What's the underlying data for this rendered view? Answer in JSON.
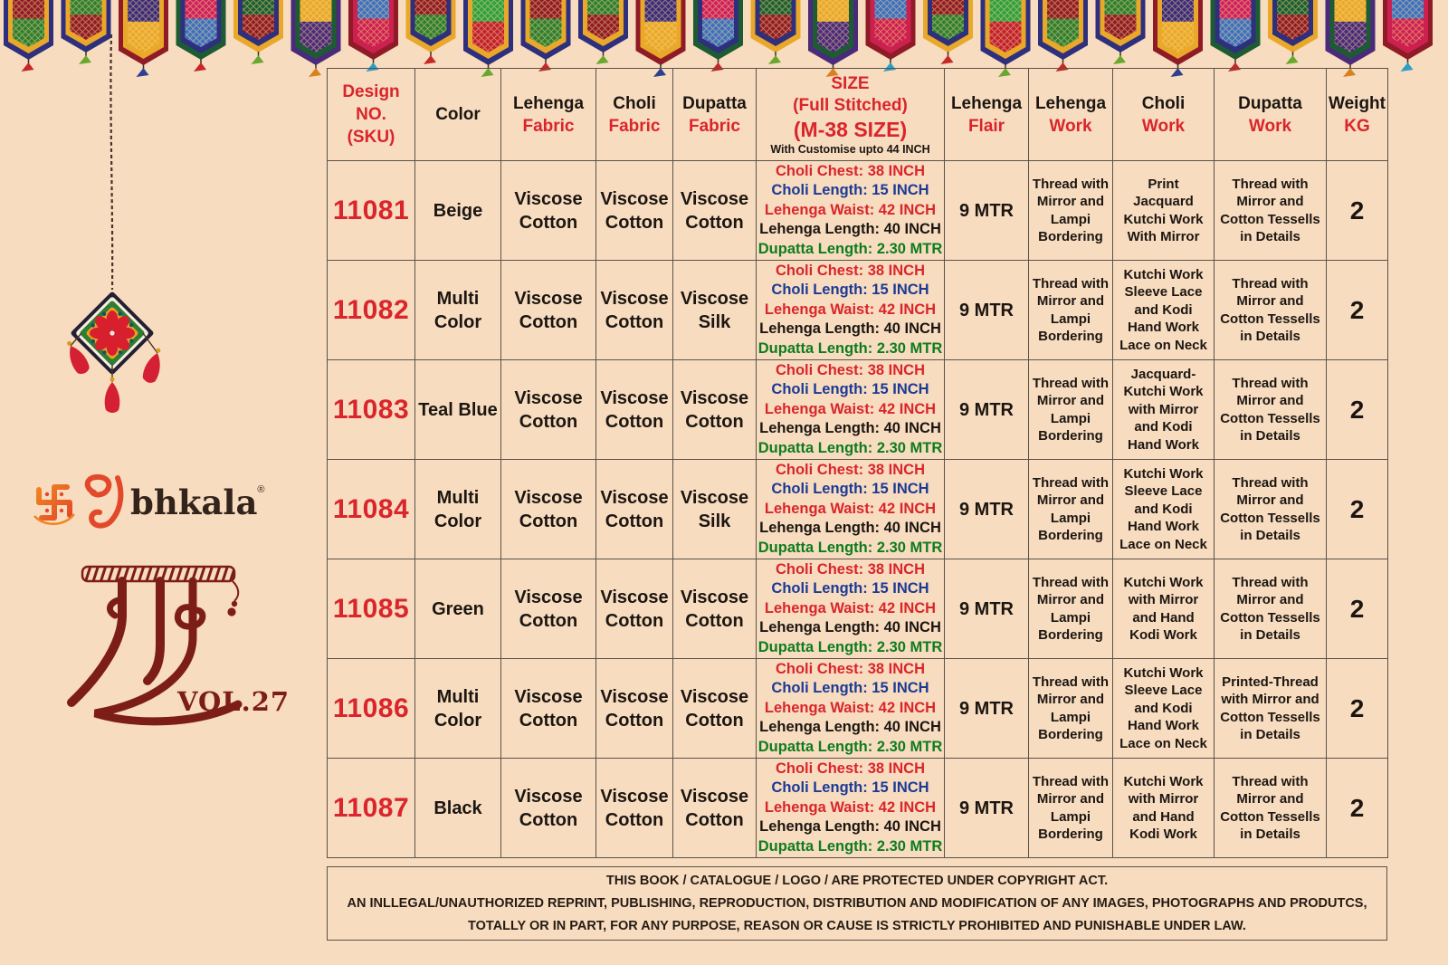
{
  "colors": {
    "page_bg": "#f8dcc0",
    "grid_border": "#5a5248",
    "red": "#d9252b",
    "blue": "#1c3a94",
    "green": "#0d7c1e",
    "black": "#1b1611",
    "maroon": "#7d1d18",
    "logo_orange": "#f0851f",
    "logo_red": "#e2492a",
    "logo_brown": "#33241b"
  },
  "brand": {
    "swastika_icon": "swastika-icon",
    "devanagari_prefix": "शु",
    "name": "bhkala",
    "registered_mark": "®",
    "series_title_devanagari": "रास",
    "volume": "VOL.27"
  },
  "table": {
    "header": [
      {
        "key": "design-no",
        "lines": [
          {
            "t": "Design",
            "c": "red"
          },
          {
            "t": "NO.",
            "c": "red"
          },
          {
            "t": "(SKU)",
            "c": "red"
          }
        ]
      },
      {
        "key": "color",
        "lines": [
          {
            "t": "Color",
            "c": "black"
          }
        ]
      },
      {
        "key": "lehenga-fabric",
        "lines": [
          {
            "t": "Lehenga",
            "c": "black"
          },
          {
            "t": "Fabric",
            "c": "red"
          }
        ]
      },
      {
        "key": "choli-fabric",
        "lines": [
          {
            "t": "Choli",
            "c": "black"
          },
          {
            "t": "Fabric",
            "c": "red"
          }
        ]
      },
      {
        "key": "dupatta-fabric",
        "lines": [
          {
            "t": "Dupatta",
            "c": "black"
          },
          {
            "t": "Fabric",
            "c": "red"
          }
        ]
      },
      {
        "key": "size",
        "lines": [
          {
            "t": "SIZE",
            "c": "red",
            "cls": "big"
          },
          {
            "t": "(Full Stitched)",
            "c": "red",
            "cls": "big"
          },
          {
            "t": "(M-38 SIZE)",
            "c": "red",
            "cls": "xl"
          },
          {
            "t": "With Customise upto 44 INCH",
            "c": "black",
            "cls": "small"
          }
        ]
      },
      {
        "key": "lehenga-flair",
        "lines": [
          {
            "t": "Lehenga",
            "c": "black"
          },
          {
            "t": "Flair",
            "c": "red"
          }
        ]
      },
      {
        "key": "lehenga-work",
        "lines": [
          {
            "t": "Lehenga",
            "c": "black"
          },
          {
            "t": "Work",
            "c": "red"
          }
        ]
      },
      {
        "key": "choli-work",
        "lines": [
          {
            "t": "Choli",
            "c": "black"
          },
          {
            "t": "Work",
            "c": "red"
          }
        ]
      },
      {
        "key": "dupatta-work",
        "lines": [
          {
            "t": "Dupatta",
            "c": "black"
          },
          {
            "t": "Work",
            "c": "red"
          }
        ]
      },
      {
        "key": "weight",
        "lines": [
          {
            "t": "Weight",
            "c": "black"
          },
          {
            "t": "KG",
            "c": "red"
          }
        ]
      }
    ],
    "size_lines": [
      {
        "t": "Choli Chest: 38 INCH",
        "c": "red"
      },
      {
        "t": "Choli Length: 15 INCH",
        "c": "blue"
      },
      {
        "t": "Lehenga Waist: 42 INCH",
        "c": "red"
      },
      {
        "t": "Lehenga Length: 40 INCH",
        "c": "black"
      },
      {
        "t": "Dupatta Length: 2.30 MTR",
        "c": "green"
      }
    ],
    "rows": [
      {
        "sku": "11081",
        "color": "Beige",
        "lehenga_fabric": "Viscose Cotton",
        "choli_fabric": "Viscose Cotton",
        "dupatta_fabric": "Viscose Cotton",
        "lehenga_flair": "9 MTR",
        "lehenga_work": "Thread with Mirror and Lampi Bordering",
        "choli_work": "Print Jacquard Kutchi Work With Mirror",
        "dupatta_work": "Thread with Mirror and Cotton Tessells in Details",
        "weight_kg": "2"
      },
      {
        "sku": "11082",
        "color": "Multi Color",
        "lehenga_fabric": "Viscose Cotton",
        "choli_fabric": "Viscose Cotton",
        "dupatta_fabric": "Viscose Silk",
        "lehenga_flair": "9 MTR",
        "lehenga_work": "Thread with Mirror and Lampi Bordering",
        "choli_work": "Kutchi Work Sleeve Lace and Kodi Hand Work Lace on Neck",
        "dupatta_work": "Thread with Mirror and Cotton Tessells in Details",
        "weight_kg": "2"
      },
      {
        "sku": "11083",
        "color": "Teal Blue",
        "lehenga_fabric": "Viscose Cotton",
        "choli_fabric": "Viscose Cotton",
        "dupatta_fabric": "Viscose Cotton",
        "lehenga_flair": "9 MTR",
        "lehenga_work": "Thread with Mirror and Lampi Bordering",
        "choli_work": "Jacquard- Kutchi Work with Mirror and Kodi Hand Work",
        "dupatta_work": "Thread with Mirror and Cotton Tessells in Details",
        "weight_kg": "2"
      },
      {
        "sku": "11084",
        "color": "Multi Color",
        "lehenga_fabric": "Viscose Cotton",
        "choli_fabric": "Viscose Cotton",
        "dupatta_fabric": "Viscose Silk",
        "lehenga_flair": "9 MTR",
        "lehenga_work": "Thread with Mirror and Lampi Bordering",
        "choli_work": "Kutchi Work Sleeve Lace and Kodi Hand Work Lace on Neck",
        "dupatta_work": "Thread with Mirror and Cotton Tessells in Details",
        "weight_kg": "2"
      },
      {
        "sku": "11085",
        "color": "Green",
        "lehenga_fabric": "Viscose Cotton",
        "choli_fabric": "Viscose Cotton",
        "dupatta_fabric": "Viscose Cotton",
        "lehenga_flair": "9 MTR",
        "lehenga_work": "Thread with Mirror and Lampi Bordering",
        "choli_work": "Kutchi Work with Mirror and Hand Kodi Work",
        "dupatta_work": "Thread with Mirror and Cotton Tessells in Details",
        "weight_kg": "2"
      },
      {
        "sku": "11086",
        "color": "Multi Color",
        "lehenga_fabric": "Viscose Cotton",
        "choli_fabric": "Viscose Cotton",
        "dupatta_fabric": "Viscose Cotton",
        "lehenga_flair": "9 MTR",
        "lehenga_work": "Thread with Mirror and Lampi Bordering",
        "choli_work": "Kutchi Work Sleeve Lace and Kodi Hand Work Lace on Neck",
        "dupatta_work": "Printed-Thread with Mirror and Cotton Tessells in Details",
        "weight_kg": "2"
      },
      {
        "sku": "11087",
        "color": "Black",
        "lehenga_fabric": "Viscose Cotton",
        "choli_fabric": "Viscose Cotton",
        "dupatta_fabric": "Viscose Cotton",
        "lehenga_flair": "9 MTR",
        "lehenga_work": "Thread with Mirror and Lampi Bordering",
        "choli_work": "Kutchi Work with Mirror and Hand Kodi Work",
        "dupatta_work": "Thread with Mirror and Cotton Tessells in Details",
        "weight_kg": "2"
      }
    ]
  },
  "footer": {
    "lines": [
      "THIS BOOK / CATALOGUE / LOGO / ARE PROTECTED UNDER COPYRIGHT ACT.",
      "AN INLLEGAL/UNAUTHORIZED REPRINT, PUBLISHING, REPRODUCTION, DISTRIBUTION AND MODIFICATION OF ANY IMAGES, PHOTOGRAPHS AND PRODUTCS,",
      "TOTALLY OR IN PART, FOR ANY PURPOSE, REASON OR CAUSE IS STRICTLY PROHIBITED AND PUNISHABLE UNDER LAW."
    ]
  },
  "decor": {
    "pennant_count": 25,
    "pennant_palette": [
      {
        "border": "#2e2f7d",
        "inner": "#e9a82a",
        "top": "#8f1b26",
        "bottom": "#2e7d32",
        "tassel": "#c62828"
      },
      {
        "border": "#2e2f7d",
        "inner": "#e9a82a",
        "top": "#2e7d32",
        "bottom": "#8f1b26",
        "tassel": "#69a82c"
      },
      {
        "border": "#8f1b26",
        "inner": "#e9a82a",
        "top": "#3b2a7a",
        "bottom": "#e9a82a",
        "tassel": "#2e3f8f"
      },
      {
        "border": "#1d5c33",
        "inner": "#2e2f7d",
        "top": "#cc1f5e",
        "bottom": "#3d6fc0",
        "tassel": "#c62828"
      },
      {
        "border": "#e9a82a",
        "inner": "#2e2f7d",
        "top": "#1d5c33",
        "bottom": "#8f1b26",
        "tassel": "#69a82c"
      },
      {
        "border": "#4a2a7a",
        "inner": "#1d5c33",
        "top": "#e9a82a",
        "bottom": "#4a2a7a",
        "tassel": "#d8821f"
      },
      {
        "border": "#8f1b26",
        "inner": "#cc2050",
        "top": "#3d6fc0",
        "bottom": "#cc2050",
        "tassel": "#2e9ec4"
      },
      {
        "border": "#e9a82a",
        "inner": "#2e2f7d",
        "top": "#8f1b26",
        "bottom": "#2e7d32",
        "tassel": "#c62828"
      },
      {
        "border": "#2e2f7d",
        "inner": "#e9a82a",
        "top": "#2e9e3f",
        "bottom": "#c02030",
        "tassel": "#69a82c"
      }
    ],
    "ornament": {
      "outline": "#241f33",
      "white": "#f6efdf",
      "green": "#2f7d33",
      "gold": "#e8a21f",
      "field": "#faf3e2",
      "flower": "#d81f2e",
      "accent": "#1b4d6e",
      "tassel": "#d42032",
      "bead": "#d4a017",
      "string": "#4a322a"
    }
  }
}
